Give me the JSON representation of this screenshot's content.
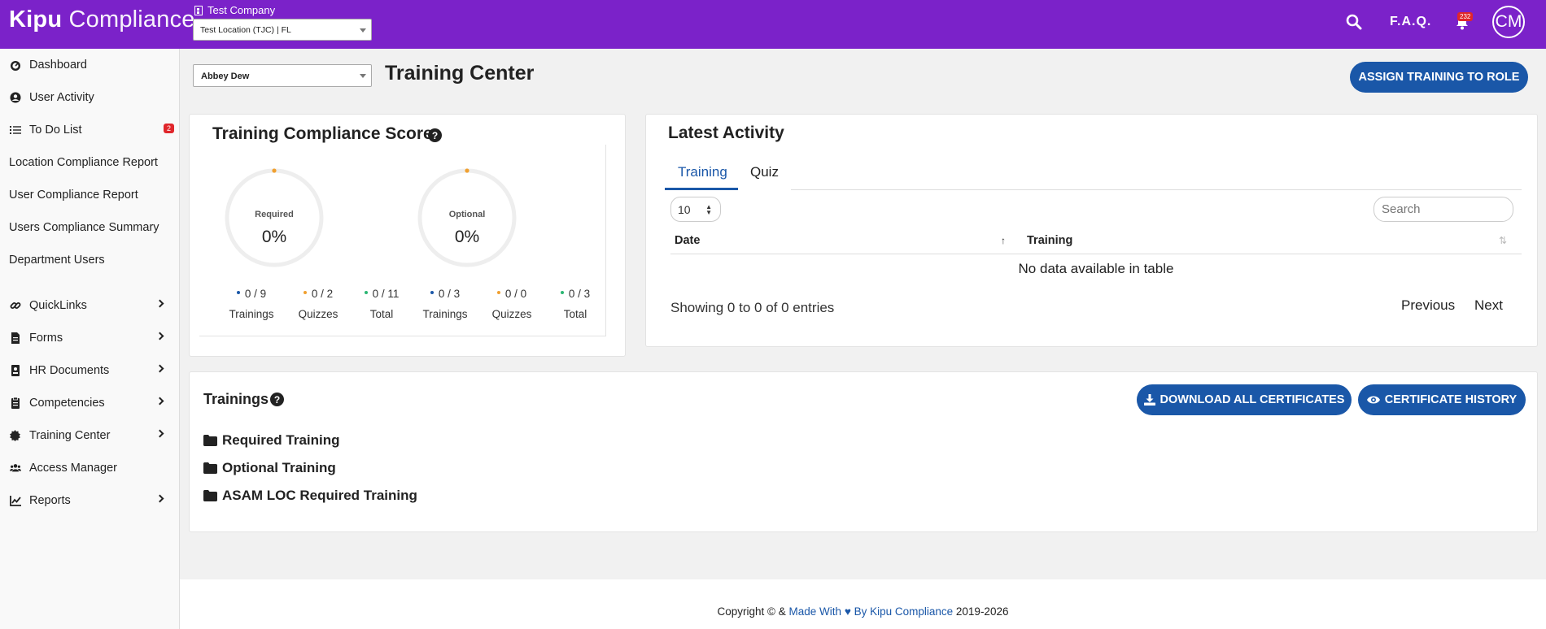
{
  "header": {
    "logo_bold": "Kipu",
    "logo_light": " Compliance",
    "company": "Test Company",
    "location_select": "Test Location (TJC) | FL",
    "faq": "F.A.Q.",
    "notif_count": "232",
    "avatar_initials": "CM",
    "bg_color": "#7b22c9"
  },
  "sidebar": {
    "items": [
      {
        "label": "Dashboard",
        "icon": "gauge-icon"
      },
      {
        "label": "User Activity",
        "icon": "user-circle-icon"
      },
      {
        "label": "To Do List",
        "icon": "list-icon",
        "badge": "2"
      },
      {
        "label": "Location Compliance Report"
      },
      {
        "label": "User Compliance Report"
      },
      {
        "label": "Users Compliance Summary"
      },
      {
        "label": "Department Users"
      },
      {
        "label": "QuickLinks",
        "icon": "link-icon",
        "submenu": true
      },
      {
        "label": "Forms",
        "icon": "file-icon",
        "submenu": true
      },
      {
        "label": "HR Documents",
        "icon": "id-card-icon",
        "submenu": true
      },
      {
        "label": "Competencies",
        "icon": "clipboard-icon",
        "submenu": true
      },
      {
        "label": "Training Center",
        "icon": "certificate-icon",
        "submenu": true
      },
      {
        "label": "Access Manager",
        "icon": "users-icon"
      },
      {
        "label": "Reports",
        "icon": "chart-line-icon",
        "submenu": true
      }
    ]
  },
  "main": {
    "user_select": "Abbey Dew",
    "page_title": "Training Center",
    "assign_button": "ASSIGN TRAINING TO ROLE",
    "score": {
      "title": "Training Compliance Score",
      "help": "?",
      "required": {
        "label": "Required",
        "value": "0%",
        "progress": 0
      },
      "optional": {
        "label": "Optional",
        "value": "0%",
        "progress": 0
      },
      "stats": [
        {
          "num": "0 / 9",
          "cap": "Trainings",
          "color": "#1a57a8"
        },
        {
          "num": "0 / 2",
          "cap": "Quizzes",
          "color": "#f0a030"
        },
        {
          "num": "0 / 11",
          "cap": "Total",
          "color": "#2bb673"
        },
        {
          "num": "0 / 3",
          "cap": "Trainings",
          "color": "#1a57a8"
        },
        {
          "num": "0 / 0",
          "cap": "Quizzes",
          "color": "#f0a030"
        },
        {
          "num": "0 / 3",
          "cap": "Total",
          "color": "#2bb673"
        }
      ]
    },
    "activity": {
      "title": "Latest Activity",
      "tabs": [
        "Training",
        "Quiz"
      ],
      "page_length": "10",
      "search_placeholder": "Search",
      "columns": [
        "Date",
        "Training"
      ],
      "empty": "No data available in table",
      "showing": "Showing 0 to 0 of 0 entries",
      "previous": "Previous",
      "next": "Next"
    },
    "trainings": {
      "title": "Trainings",
      "help": "?",
      "folders": [
        "Required Training",
        "Optional Training",
        "ASAM LOC Required Training"
      ],
      "download_button": "DOWNLOAD ALL CERTIFICATES",
      "history_button": "CERTIFICATE HISTORY"
    }
  },
  "footer": {
    "prefix": "Copyright © & ",
    "made_with": "Made With",
    "heart": "♥",
    "by": " By ",
    "brand": "Kipu Compliance",
    "years": " 2019-2026"
  },
  "accent": "#1a57a8"
}
